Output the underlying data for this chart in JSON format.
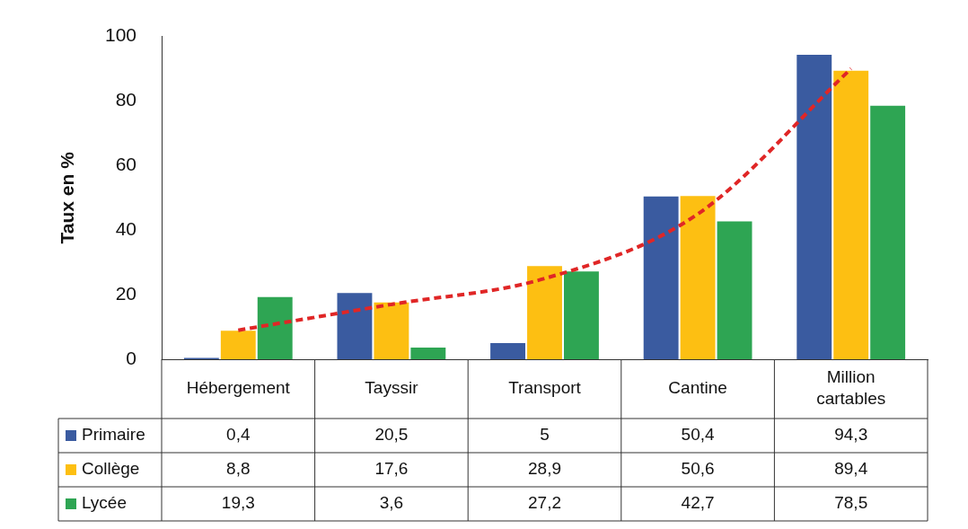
{
  "chart_data": {
    "type": "bar",
    "ylabel": "Taux en %",
    "categories": [
      "Hébergement",
      "Tayssir",
      "Transport",
      "Cantine",
      "Million cartables"
    ],
    "series": [
      {
        "name": "Primaire",
        "color": "#3a5ba0",
        "values": [
          0.4,
          20.5,
          5,
          50.4,
          94.3
        ],
        "value_labels": [
          "0,4",
          "20,5",
          "5",
          "50,4",
          "94,3"
        ]
      },
      {
        "name": "Collège",
        "color": "#fdbf12",
        "values": [
          8.8,
          17.6,
          28.9,
          50.6,
          89.4
        ],
        "value_labels": [
          "8,8",
          "17,6",
          "28,9",
          "50,6",
          "89,4"
        ]
      },
      {
        "name": "Lycée",
        "color": "#2ea553",
        "values": [
          19.3,
          3.6,
          27.2,
          42.7,
          78.5
        ],
        "value_labels": [
          "19,3",
          "3,6",
          "27,2",
          "42,7",
          "78,5"
        ]
      },
      {
        "type": "line",
        "color": "#e02626",
        "line_style": "dashed",
        "values": [
          9,
          17,
          25,
          45,
          90
        ]
      }
    ],
    "ylim": [
      0,
      100
    ],
    "yticks": [
      0,
      20,
      40,
      60,
      80,
      100
    ],
    "grid": false,
    "legend": "bottom"
  }
}
